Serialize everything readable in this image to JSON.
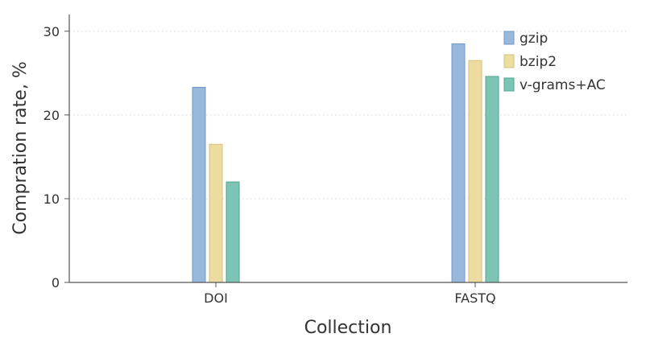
{
  "chart_data": {
    "type": "bar",
    "title": "",
    "xlabel": "Collection",
    "ylabel": "Compration rate, %",
    "categories": [
      "DOI",
      "FASTQ"
    ],
    "yticks": [
      "0",
      "10",
      "20",
      "30"
    ],
    "ylim": [
      0,
      32
    ],
    "grid": "horizontal dotted",
    "legend_position": "top-right",
    "series": [
      {
        "name": "gzip",
        "values": [
          23.3,
          28.5
        ],
        "color": "#98b8dc",
        "stroke": "#7298c4"
      },
      {
        "name": "bzip2",
        "values": [
          16.5,
          26.5
        ],
        "color": "#ecdca0",
        "stroke": "#d6c07a"
      },
      {
        "name": "v-grams+AC",
        "values": [
          12.0,
          24.6
        ],
        "color": "#7ec4b4",
        "stroke": "#4ea490"
      }
    ]
  }
}
